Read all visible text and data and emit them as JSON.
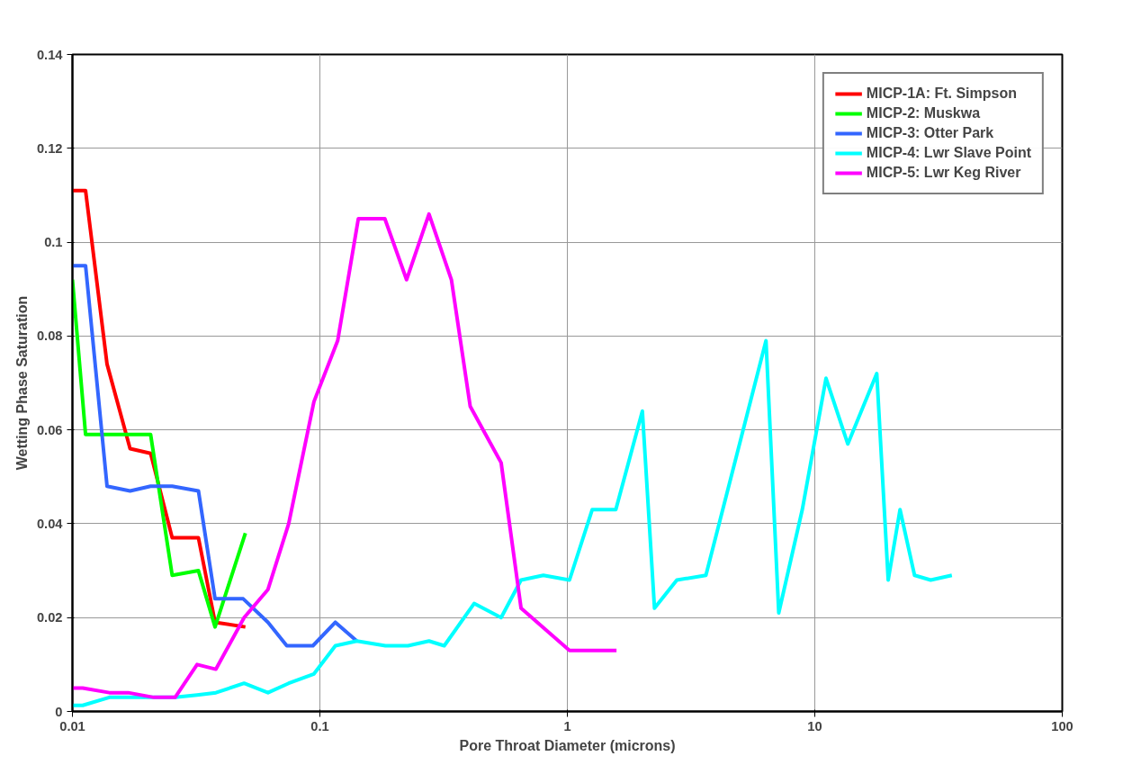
{
  "chart_data": {
    "type": "line",
    "xlabel": "Pore Throat Diameter (microns)",
    "ylabel": "Wetting Phase Saturation",
    "log": "x",
    "grid": true,
    "legend": "top right",
    "marker": "none",
    "line_style": "solid",
    "xlim": [
      0.01,
      100
    ],
    "xticks": [
      0.01,
      0.1,
      1,
      10,
      100
    ],
    "ylim": [
      0,
      0.14
    ],
    "yticks": [
      0,
      0.02,
      0.04,
      0.06,
      0.08,
      0.1,
      0.12,
      0.14
    ],
    "series": [
      {
        "name": "MICP-1A: Ft. Simpson",
        "color": "#ff0000",
        "x": [
          0.01,
          0.0113,
          0.0138,
          0.0171,
          0.0207,
          0.0253,
          0.0323,
          0.0377,
          0.05
        ],
        "values": [
          0.111,
          0.111,
          0.074,
          0.056,
          0.055,
          0.037,
          0.037,
          0.019,
          0.018
        ]
      },
      {
        "name": "MICP-2: Muskwa",
        "color": "#00ff00",
        "x": [
          0.01,
          0.0113,
          0.0138,
          0.0171,
          0.0207,
          0.0253,
          0.0323,
          0.0377,
          0.05
        ],
        "values": [
          0.092,
          0.059,
          0.059,
          0.059,
          0.059,
          0.029,
          0.03,
          0.018,
          0.038
        ]
      },
      {
        "name": "MICP-3: Otter Park",
        "color": "#3366ff",
        "x": [
          0.01,
          0.0113,
          0.0138,
          0.0171,
          0.0207,
          0.0253,
          0.0323,
          0.0377,
          0.049,
          0.0617,
          0.0735,
          0.0937,
          0.1155,
          0.141
        ],
        "values": [
          0.095,
          0.095,
          0.048,
          0.047,
          0.048,
          0.048,
          0.047,
          0.024,
          0.024,
          0.019,
          0.014,
          0.014,
          0.019,
          0.015
        ]
      },
      {
        "name": "MICP-4: Lwr Slave Point",
        "color": "#00ffff",
        "x": [
          0.01,
          0.011,
          0.0141,
          0.0168,
          0.0213,
          0.026,
          0.0319,
          0.038,
          0.0494,
          0.0617,
          0.0748,
          0.0946,
          0.1155,
          0.141,
          0.184,
          0.227,
          0.276,
          0.318,
          0.42,
          0.54,
          0.65,
          0.8,
          1.02,
          1.26,
          1.57,
          2.01,
          2.25,
          2.77,
          3.63,
          6.35,
          7.15,
          8.9,
          11.1,
          13.6,
          17.8,
          19.8,
          22.1,
          25.3,
          29.4,
          35.8
        ],
        "values": [
          0.0013,
          0.0013,
          0.003,
          0.003,
          0.003,
          0.003,
          0.0035,
          0.004,
          0.006,
          0.004,
          0.006,
          0.008,
          0.014,
          0.015,
          0.014,
          0.014,
          0.015,
          0.014,
          0.023,
          0.02,
          0.028,
          0.029,
          0.028,
          0.043,
          0.043,
          0.064,
          0.022,
          0.028,
          0.029,
          0.079,
          0.021,
          0.043,
          0.071,
          0.057,
          0.072,
          0.028,
          0.043,
          0.029,
          0.028,
          0.029
        ]
      },
      {
        "name": "MICP-5: Lwr Keg River",
        "color": "#ff00ff",
        "x": [
          0.01,
          0.011,
          0.0141,
          0.0168,
          0.0213,
          0.026,
          0.0319,
          0.038,
          0.0494,
          0.0617,
          0.0748,
          0.0946,
          0.118,
          0.143,
          0.183,
          0.224,
          0.276,
          0.34,
          0.405,
          0.54,
          0.65,
          1.02,
          1.58
        ],
        "values": [
          0.005,
          0.005,
          0.004,
          0.004,
          0.003,
          0.003,
          0.01,
          0.009,
          0.02,
          0.026,
          0.04,
          0.066,
          0.079,
          0.105,
          0.105,
          0.092,
          0.106,
          0.092,
          0.065,
          0.053,
          0.022,
          0.013,
          0.013
        ]
      }
    ]
  }
}
